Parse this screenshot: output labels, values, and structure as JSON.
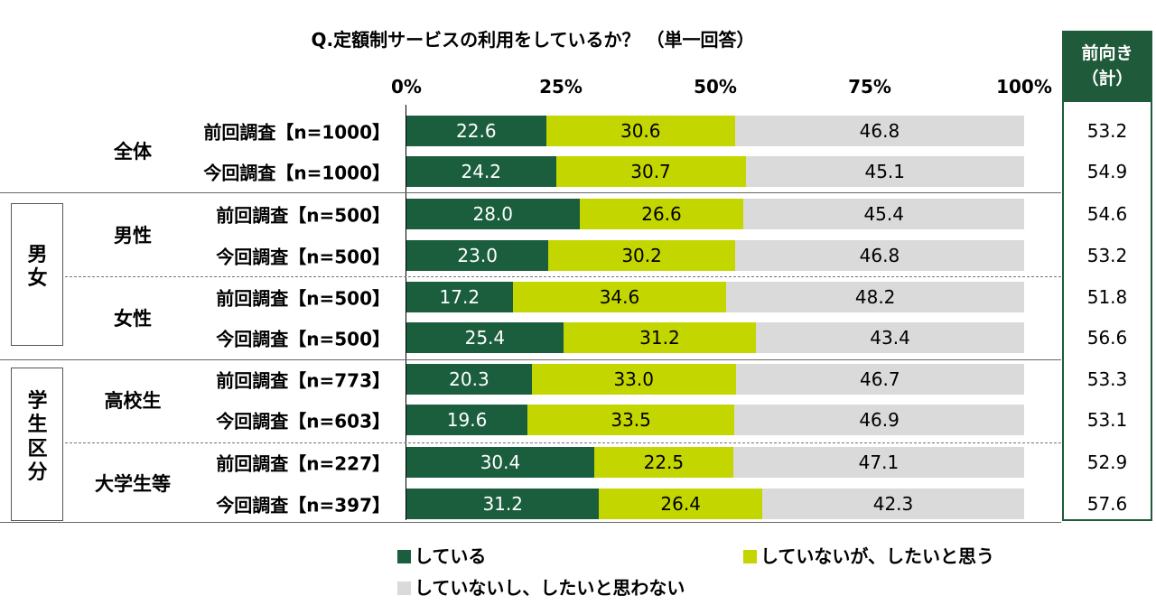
{
  "chart_data": {
    "type": "bar",
    "stacked": true,
    "orientation": "horizontal",
    "title": "Q.定額制サービスの利用をしているか？ （単一回答）",
    "x_ticks": [
      "0%",
      "25%",
      "50%",
      "75%",
      "100%"
    ],
    "xlim": [
      0,
      100
    ],
    "series": [
      {
        "name": "している",
        "color": "#1b5e3e"
      },
      {
        "name": "していないが、したいと思う",
        "color": "#c3d600"
      },
      {
        "name": "していないし、したいと思わない",
        "color": "#dadada"
      }
    ],
    "rows": [
      {
        "label": "前回調査【n=1000】",
        "values": [
          22.6,
          30.6,
          46.8
        ],
        "total": "53.2"
      },
      {
        "label": "今回調査【n=1000】",
        "values": [
          24.2,
          30.7,
          45.1
        ],
        "total": "54.9"
      },
      {
        "label": "前回調査【n=500】",
        "values": [
          28.0,
          26.6,
          45.4
        ],
        "total": "54.6"
      },
      {
        "label": "今回調査【n=500】",
        "values": [
          23.0,
          30.2,
          46.8
        ],
        "total": "53.2"
      },
      {
        "label": "前回調査【n=500】",
        "values": [
          17.2,
          34.6,
          48.2
        ],
        "total": "51.8"
      },
      {
        "label": "今回調査【n=500】",
        "values": [
          25.4,
          31.2,
          43.4
        ],
        "total": "56.6"
      },
      {
        "label": "前回調査【n=773】",
        "values": [
          20.3,
          33.0,
          46.7
        ],
        "total": "53.3"
      },
      {
        "label": "今回調査【n=603】",
        "values": [
          19.6,
          33.5,
          46.9
        ],
        "total": "53.1"
      },
      {
        "label": "前回調査【n=227】",
        "values": [
          30.4,
          22.5,
          47.1
        ],
        "total": "52.9"
      },
      {
        "label": "今回調査【n=397】",
        "values": [
          31.2,
          26.4,
          42.3
        ],
        "total": "57.6"
      }
    ],
    "value_labels": [
      [
        "22.6",
        "30.6",
        "46.8"
      ],
      [
        "24.2",
        "30.7",
        "45.1"
      ],
      [
        "28.0",
        "26.6",
        "45.4"
      ],
      [
        "23.0",
        "30.2",
        "46.8"
      ],
      [
        "17.2",
        "34.6",
        "48.2"
      ],
      [
        "25.4",
        "31.2",
        "43.4"
      ],
      [
        "20.3",
        "33.0",
        "46.7"
      ],
      [
        "19.6",
        "33.5",
        "46.9"
      ],
      [
        "30.4",
        "22.5",
        "47.1"
      ],
      [
        "31.2",
        "26.4",
        "42.3"
      ]
    ],
    "groups": [
      {
        "label": "全体"
      },
      {
        "label": "男性"
      },
      {
        "label": "女性"
      },
      {
        "label": "高校生"
      },
      {
        "label": "大学生等"
      }
    ],
    "outer_groups": [
      {
        "label": "男女"
      },
      {
        "label": "学生区分"
      }
    ],
    "total_header": "前向き（計）",
    "total_header_lines": [
      "前向き",
      "（計）"
    ]
  }
}
